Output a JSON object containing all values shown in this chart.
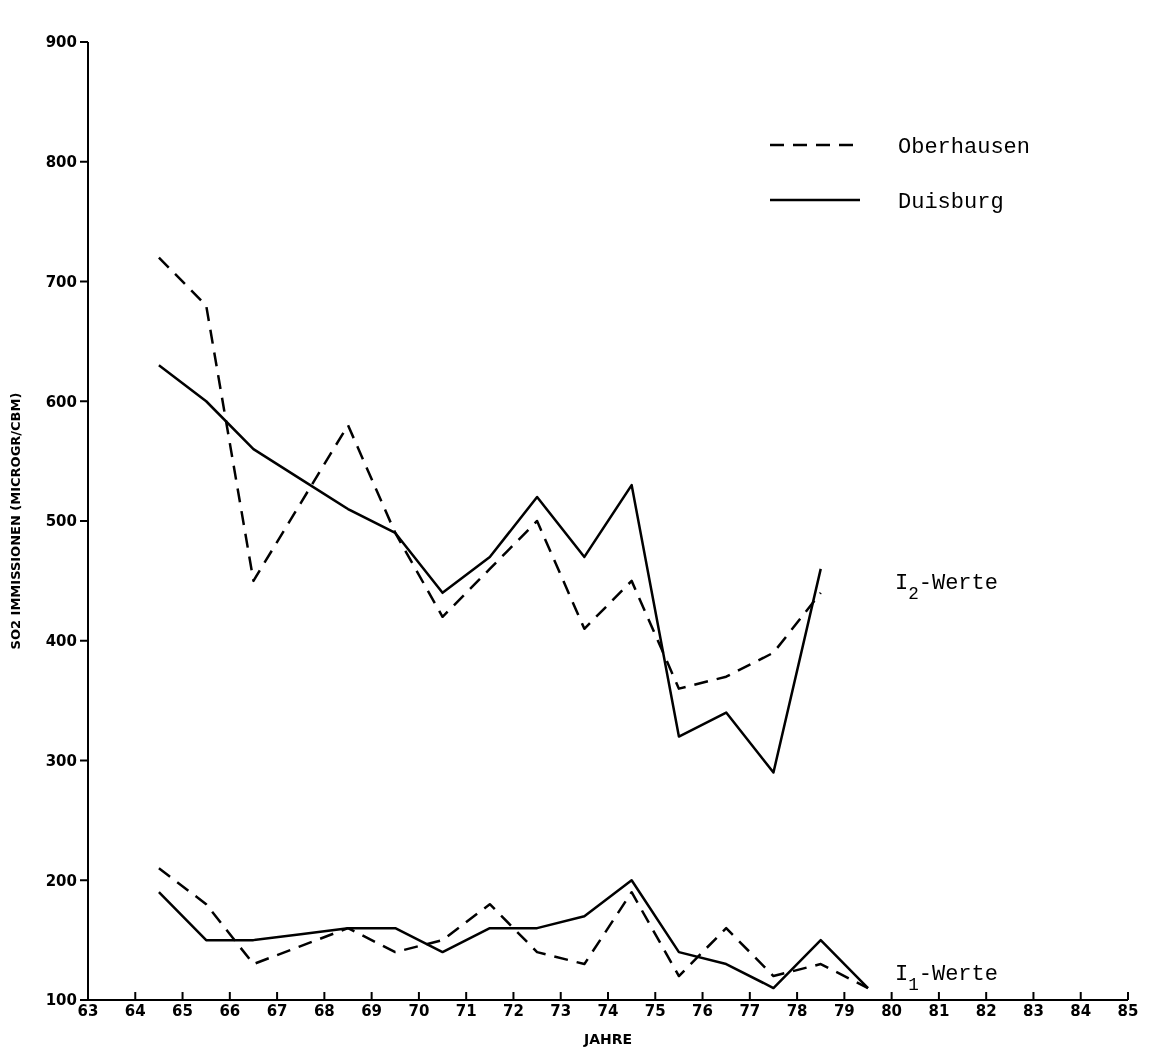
{
  "chart_data": {
    "type": "line",
    "xlabel": "JAHRE",
    "ylabel": "SO2 IMMISSIONEN (MICROGR/CBM)",
    "xlim": [
      63,
      85
    ],
    "xticks": [
      63,
      64,
      65,
      66,
      67,
      68,
      69,
      70,
      71,
      72,
      73,
      74,
      75,
      76,
      77,
      78,
      79,
      80,
      81,
      82,
      83,
      84,
      85
    ],
    "ylim": [
      100,
      900
    ],
    "yticks": [
      100,
      200,
      300,
      400,
      500,
      600,
      700,
      800,
      900
    ],
    "grid": false,
    "legend": "top right",
    "marker": "none",
    "series": [
      {
        "name": "Oberhausen",
        "color": "#000000",
        "line_style": "dashed",
        "x": [
          64.5,
          65.5,
          66.5,
          67.5,
          68.5,
          69.5,
          70.5,
          71.5,
          72.5,
          73.5,
          74.5,
          75.5,
          76.5,
          77.5,
          78.5
        ],
        "values": [
          720,
          680,
          450,
          515,
          580,
          490,
          420,
          460,
          500,
          410,
          450,
          360,
          370,
          390,
          440
        ]
      },
      {
        "name": "Duisburg",
        "color": "#000000",
        "line_style": "solid",
        "x": [
          64.5,
          65.5,
          66.5,
          67.5,
          68.5,
          69.5,
          70.5,
          71.5,
          72.5,
          73.5,
          74.5,
          75.5,
          76.5,
          77.5,
          78.5
        ],
        "values": [
          630,
          600,
          560,
          535,
          510,
          490,
          440,
          470,
          520,
          470,
          530,
          320,
          340,
          290,
          460
        ]
      },
      {
        "color": "#000000",
        "line_style": "dashed",
        "x": [
          64.5,
          65.5,
          66.5,
          67.5,
          68.5,
          69.5,
          70.5,
          71.5,
          72.5,
          73.5,
          74.5,
          75.5,
          76.5,
          77.5,
          78.5,
          79.5
        ],
        "values": [
          210,
          180,
          130,
          145,
          160,
          140,
          150,
          180,
          140,
          130,
          190,
          120,
          160,
          120,
          130,
          110
        ]
      },
      {
        "color": "#000000",
        "line_style": "solid",
        "x": [
          64.5,
          65.5,
          66.5,
          67.5,
          68.5,
          69.5,
          70.5,
          71.5,
          72.5,
          73.5,
          74.5,
          75.5,
          76.5,
          77.5,
          78.5,
          79.5
        ],
        "values": [
          190,
          150,
          150,
          155,
          160,
          160,
          140,
          160,
          160,
          170,
          200,
          140,
          130,
          110,
          150,
          110
        ]
      }
    ],
    "annotations": [
      "I$_{2}$-Werte",
      "I$_{1}$-Werte"
    ]
  }
}
